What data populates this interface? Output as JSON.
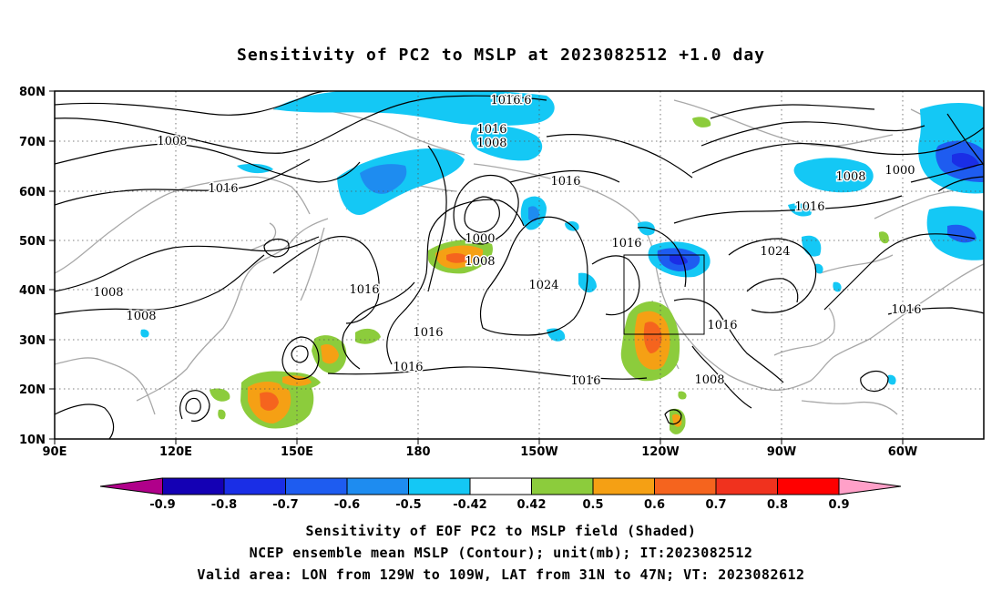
{
  "title": "Sensitivity of PC2 to MSLP at 2023082512 +1.0 day",
  "lat_labels": [
    "80N",
    "70N",
    "60N",
    "50N",
    "40N",
    "30N",
    "20N",
    "10N"
  ],
  "lon_labels": [
    "90E",
    "120E",
    "150E",
    "180",
    "150W",
    "120W",
    "90W",
    "60W"
  ],
  "contour_labels": [
    "1016",
    "1016",
    "1008",
    "1008",
    "1016",
    "1016",
    "1000",
    "1008",
    "1016",
    "1024",
    "1016",
    "1016",
    "1016",
    "1016",
    "1016",
    "1008",
    "1000",
    "1016",
    "1024",
    "1016",
    "1016",
    "1008",
    "1008",
    "1008"
  ],
  "colorbar": {
    "tick_labels": [
      "-0.9",
      "-0.8",
      "-0.7",
      "-0.6",
      "-0.5",
      "-0.42",
      "0.42",
      "0.5",
      "0.6",
      "0.7",
      "0.8",
      "0.9"
    ],
    "colors": [
      "#b0008a",
      "#1400b4",
      "#1a2ee6",
      "#1e5cf0",
      "#1e8cf0",
      "#14c8f5",
      "#ffffff",
      "#8ccc3c",
      "#f5a014",
      "#f5641e",
      "#f0321e",
      "#ff0000",
      "#ffa0c8"
    ]
  },
  "captions": {
    "line1": "Sensitivity of EOF PC2 to MSLP field (Shaded)",
    "line2": "NCEP ensemble mean MSLP (Contour); unit(mb); IT:2023082512",
    "line3": "Valid area: LON from 129W to 109W, LAT from 31N to 47N; VT: 2023082612"
  }
}
